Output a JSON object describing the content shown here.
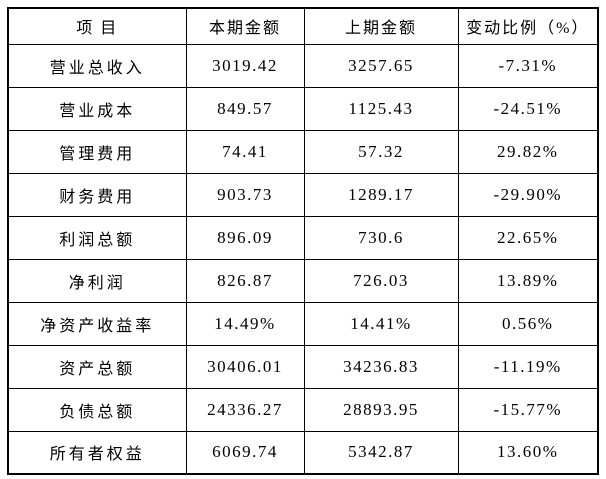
{
  "table": {
    "columns": [
      {
        "key": "item",
        "label": "项 目"
      },
      {
        "key": "current",
        "label": "本期金额"
      },
      {
        "key": "previous",
        "label": "上期金额"
      },
      {
        "key": "change",
        "label": "变动比例（%）"
      }
    ],
    "rows": [
      {
        "item": "营业总收入",
        "current": "3019.42",
        "previous": "3257.65",
        "change": "-7.31%"
      },
      {
        "item": "营业成本",
        "current": "849.57",
        "previous": "1125.43",
        "change": "-24.51%"
      },
      {
        "item": "管理费用",
        "current": "74.41",
        "previous": "57.32",
        "change": "29.82%"
      },
      {
        "item": "财务费用",
        "current": "903.73",
        "previous": "1289.17",
        "change": "-29.90%"
      },
      {
        "item": "利润总额",
        "current": "896.09",
        "previous": "730.6",
        "change": "22.65%"
      },
      {
        "item": "净利润",
        "current": "826.87",
        "previous": "726.03",
        "change": "13.89%"
      },
      {
        "item": "净资产收益率",
        "current": "14.49%",
        "previous": "14.41%",
        "change": "0.56%"
      },
      {
        "item": "资产总额",
        "current": "30406.01",
        "previous": "34236.83",
        "change": "-11.19%"
      },
      {
        "item": "负债总额",
        "current": "24336.27",
        "previous": "28893.95",
        "change": "-15.77%"
      },
      {
        "item": "所有者权益",
        "current": "6069.74",
        "previous": "5342.87",
        "change": "13.60%"
      }
    ],
    "colors": {
      "border": "#000000",
      "text": "#000000",
      "background": "#ffffff"
    }
  }
}
